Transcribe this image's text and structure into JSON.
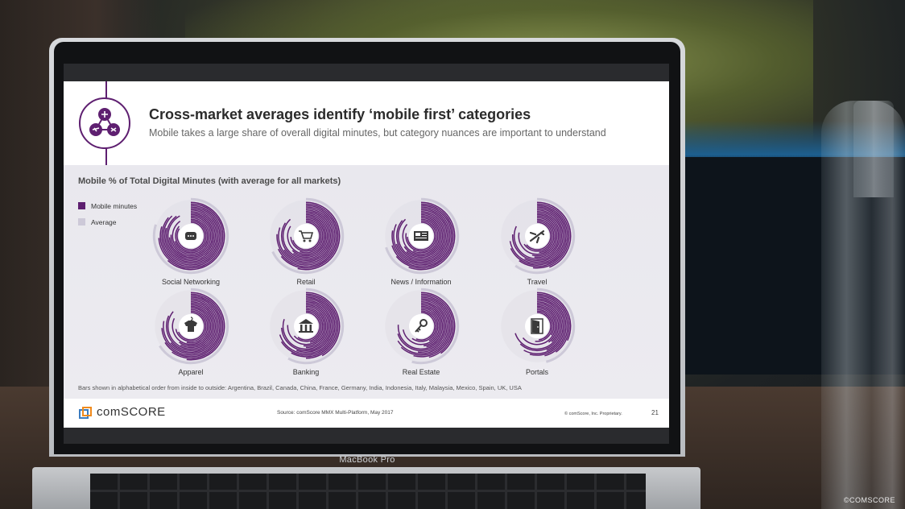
{
  "slide": {
    "title": "Cross-market averages identify ‘mobile first’ categories",
    "subtitle": "Mobile takes a large share of overall digital minutes, but category nuances are important to understand",
    "page_number": "21",
    "footer": {
      "logo": "comSCORE",
      "source": "Source: comScore MMX Multi-Platform, May 2017",
      "copyright": "© comScore, Inc. Proprietary."
    }
  },
  "laptop": {
    "model": "MacBook Pro"
  },
  "watermark": "©COMSCORE",
  "colors": {
    "mobile": "#5e1f70",
    "average": "#cdc9d8",
    "ring_bg": "#dcdbe2"
  },
  "icons": [
    "chat-bubble-icon",
    "shopping-cart-icon",
    "newspaper-icon",
    "airplane-icon",
    "shirt-icon",
    "bank-icon",
    "keys-icon",
    "door-icon"
  ],
  "chart_data": {
    "type": "radial-bar",
    "title": "Mobile % of Total Digital Minutes (with average for all markets)",
    "legend": [
      {
        "name": "Mobile minutes",
        "color": "#5e1f70"
      },
      {
        "name": "Average",
        "color": "#cdc9d8"
      }
    ],
    "note": "Bars shown in alphabetical order from inside to outside: Argentina, Brazil, Canada, China, France, Germany, India, Indonesia, Italy, Malaysia, Mexico, Spain, UK, USA",
    "markets": [
      "Argentina",
      "Brazil",
      "Canada",
      "China",
      "France",
      "Germany",
      "India",
      "Indonesia",
      "Italy",
      "Malaysia",
      "Mexico",
      "Spain",
      "UK",
      "USA"
    ],
    "categories": [
      {
        "name": "Social Networking",
        "average": 80,
        "values": [
          84,
          86,
          70,
          90,
          76,
          74,
          92,
          90,
          80,
          88,
          86,
          80,
          74,
          62
        ]
      },
      {
        "name": "Retail",
        "average": 68,
        "values": [
          70,
          74,
          56,
          84,
          62,
          60,
          88,
          84,
          66,
          80,
          76,
          68,
          64,
          54
        ]
      },
      {
        "name": "News / Information",
        "average": 70,
        "values": [
          74,
          78,
          58,
          86,
          66,
          62,
          88,
          86,
          70,
          82,
          78,
          70,
          64,
          56
        ]
      },
      {
        "name": "Travel",
        "average": 60,
        "values": [
          64,
          66,
          48,
          78,
          54,
          52,
          82,
          76,
          58,
          72,
          68,
          60,
          52,
          44
        ]
      },
      {
        "name": "Apparel",
        "average": 66,
        "values": [
          68,
          72,
          54,
          82,
          60,
          58,
          86,
          82,
          64,
          78,
          74,
          66,
          60,
          52
        ]
      },
      {
        "name": "Banking",
        "average": 58,
        "values": [
          60,
          64,
          46,
          76,
          52,
          50,
          80,
          74,
          56,
          70,
          66,
          58,
          50,
          42
        ]
      },
      {
        "name": "Real Estate",
        "average": 54,
        "values": [
          56,
          60,
          42,
          72,
          48,
          46,
          76,
          70,
          52,
          66,
          62,
          54,
          46,
          40
        ]
      },
      {
        "name": "Portals",
        "average": 46,
        "values": [
          48,
          52,
          34,
          64,
          40,
          38,
          70,
          62,
          44,
          58,
          54,
          46,
          40,
          32
        ]
      }
    ]
  }
}
